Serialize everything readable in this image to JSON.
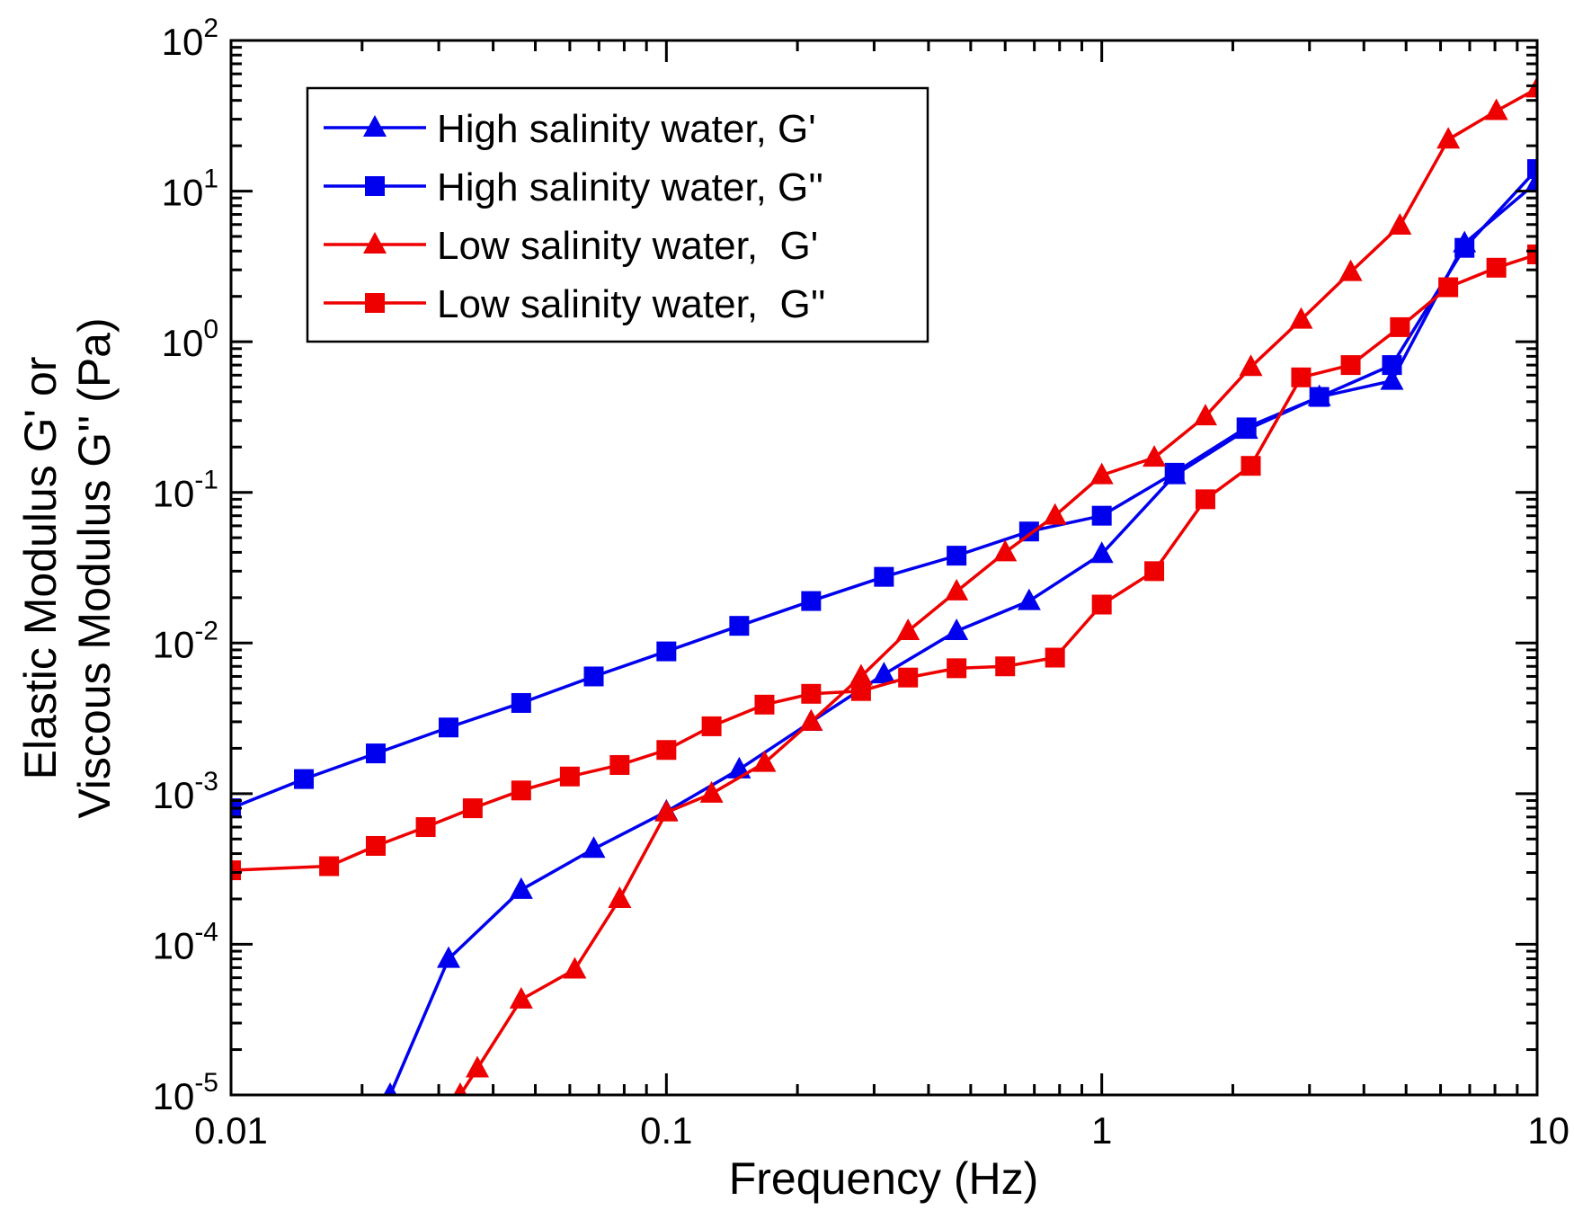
{
  "chart_data": {
    "type": "line",
    "xscale": "log",
    "yscale": "log",
    "xlabel": "Frequency (Hz)",
    "ylabel_line1": "Elastic Modulus G' or",
    "ylabel_line2": "Viscous Modulus G'' (Pa)",
    "xlim": [
      0.01,
      10
    ],
    "ylim": [
      1e-05,
      100
    ],
    "x_ticks": [
      {
        "value": 0.01,
        "label": "0.01"
      },
      {
        "value": 0.1,
        "label": "0.1"
      },
      {
        "value": 1,
        "label": "1"
      },
      {
        "value": 10,
        "label": "10"
      }
    ],
    "y_ticks": [
      {
        "value": 1e-05,
        "base": "10",
        "exp": "-5"
      },
      {
        "value": 0.0001,
        "base": "10",
        "exp": "-4"
      },
      {
        "value": 0.001,
        "base": "10",
        "exp": "-3"
      },
      {
        "value": 0.01,
        "base": "10",
        "exp": "-2"
      },
      {
        "value": 0.1,
        "base": "10",
        "exp": "-1"
      },
      {
        "value": 1,
        "base": "10",
        "exp": "0"
      },
      {
        "value": 10,
        "base": "10",
        "exp": "1"
      },
      {
        "value": 100,
        "base": "10",
        "exp": "2"
      }
    ],
    "legend_position": "top-left",
    "series": [
      {
        "name": "High salinity water, G'",
        "color": "#0000ee",
        "marker": "triangle",
        "x": [
          0.0232,
          0.0316,
          0.0464,
          0.0681,
          0.1,
          0.147,
          0.215,
          0.316,
          0.464,
          0.681,
          1.0,
          1.47,
          2.15,
          3.16,
          4.64,
          6.81,
          10.0
        ],
        "y": [
          1e-05,
          8e-05,
          0.00023,
          0.00043,
          0.00076,
          0.00145,
          0.003,
          0.0062,
          0.012,
          0.019,
          0.039,
          0.13,
          0.26,
          0.43,
          0.55,
          4.5,
          11.5
        ]
      },
      {
        "name": "High salinity water, G''",
        "color": "#0000ee",
        "marker": "square",
        "x": [
          0.01,
          0.0147,
          0.0215,
          0.0316,
          0.0464,
          0.0681,
          0.1,
          0.147,
          0.215,
          0.316,
          0.464,
          0.681,
          1.0,
          1.47,
          2.15,
          3.16,
          4.64,
          6.81,
          10.0
        ],
        "y": [
          0.0008,
          0.00125,
          0.00185,
          0.00275,
          0.004,
          0.006,
          0.0088,
          0.013,
          0.019,
          0.0275,
          0.038,
          0.055,
          0.07,
          0.135,
          0.27,
          0.43,
          0.7,
          4.2,
          14.0
        ]
      },
      {
        "name": "Low salinity water,  G'",
        "color": "#ee0000",
        "marker": "triangle",
        "x": [
          0.0336,
          0.0368,
          0.0464,
          0.0616,
          0.0781,
          0.1,
          0.127,
          0.168,
          0.215,
          0.28,
          0.359,
          0.464,
          0.6,
          0.781,
          1.0,
          1.32,
          1.73,
          2.2,
          2.87,
          3.73,
          4.84,
          6.25,
          8.06,
          10.0
        ],
        "y": [
          1e-05,
          1.5e-05,
          4.3e-05,
          6.8e-05,
          0.0002,
          0.00075,
          0.001,
          0.0016,
          0.003,
          0.006,
          0.012,
          0.022,
          0.04,
          0.07,
          0.13,
          0.17,
          0.32,
          0.68,
          1.4,
          2.9,
          5.9,
          22.0,
          34.0,
          48.0
        ]
      },
      {
        "name": "Low salinity water,  G''",
        "color": "#ee0000",
        "marker": "square",
        "x": [
          0.01,
          0.0168,
          0.0215,
          0.028,
          0.0359,
          0.0464,
          0.06,
          0.0781,
          0.1,
          0.127,
          0.168,
          0.215,
          0.28,
          0.359,
          0.464,
          0.6,
          0.781,
          1.0,
          1.32,
          1.73,
          2.2,
          2.87,
          3.73,
          4.84,
          6.25,
          8.06,
          10.0
        ],
        "y": [
          0.00031,
          0.00033,
          0.00045,
          0.0006,
          0.0008,
          0.00105,
          0.0013,
          0.00155,
          0.00195,
          0.0028,
          0.0039,
          0.0046,
          0.0048,
          0.0059,
          0.0068,
          0.007,
          0.008,
          0.018,
          0.03,
          0.09,
          0.15,
          0.58,
          0.7,
          1.25,
          2.3,
          3.1,
          3.8
        ]
      }
    ]
  }
}
